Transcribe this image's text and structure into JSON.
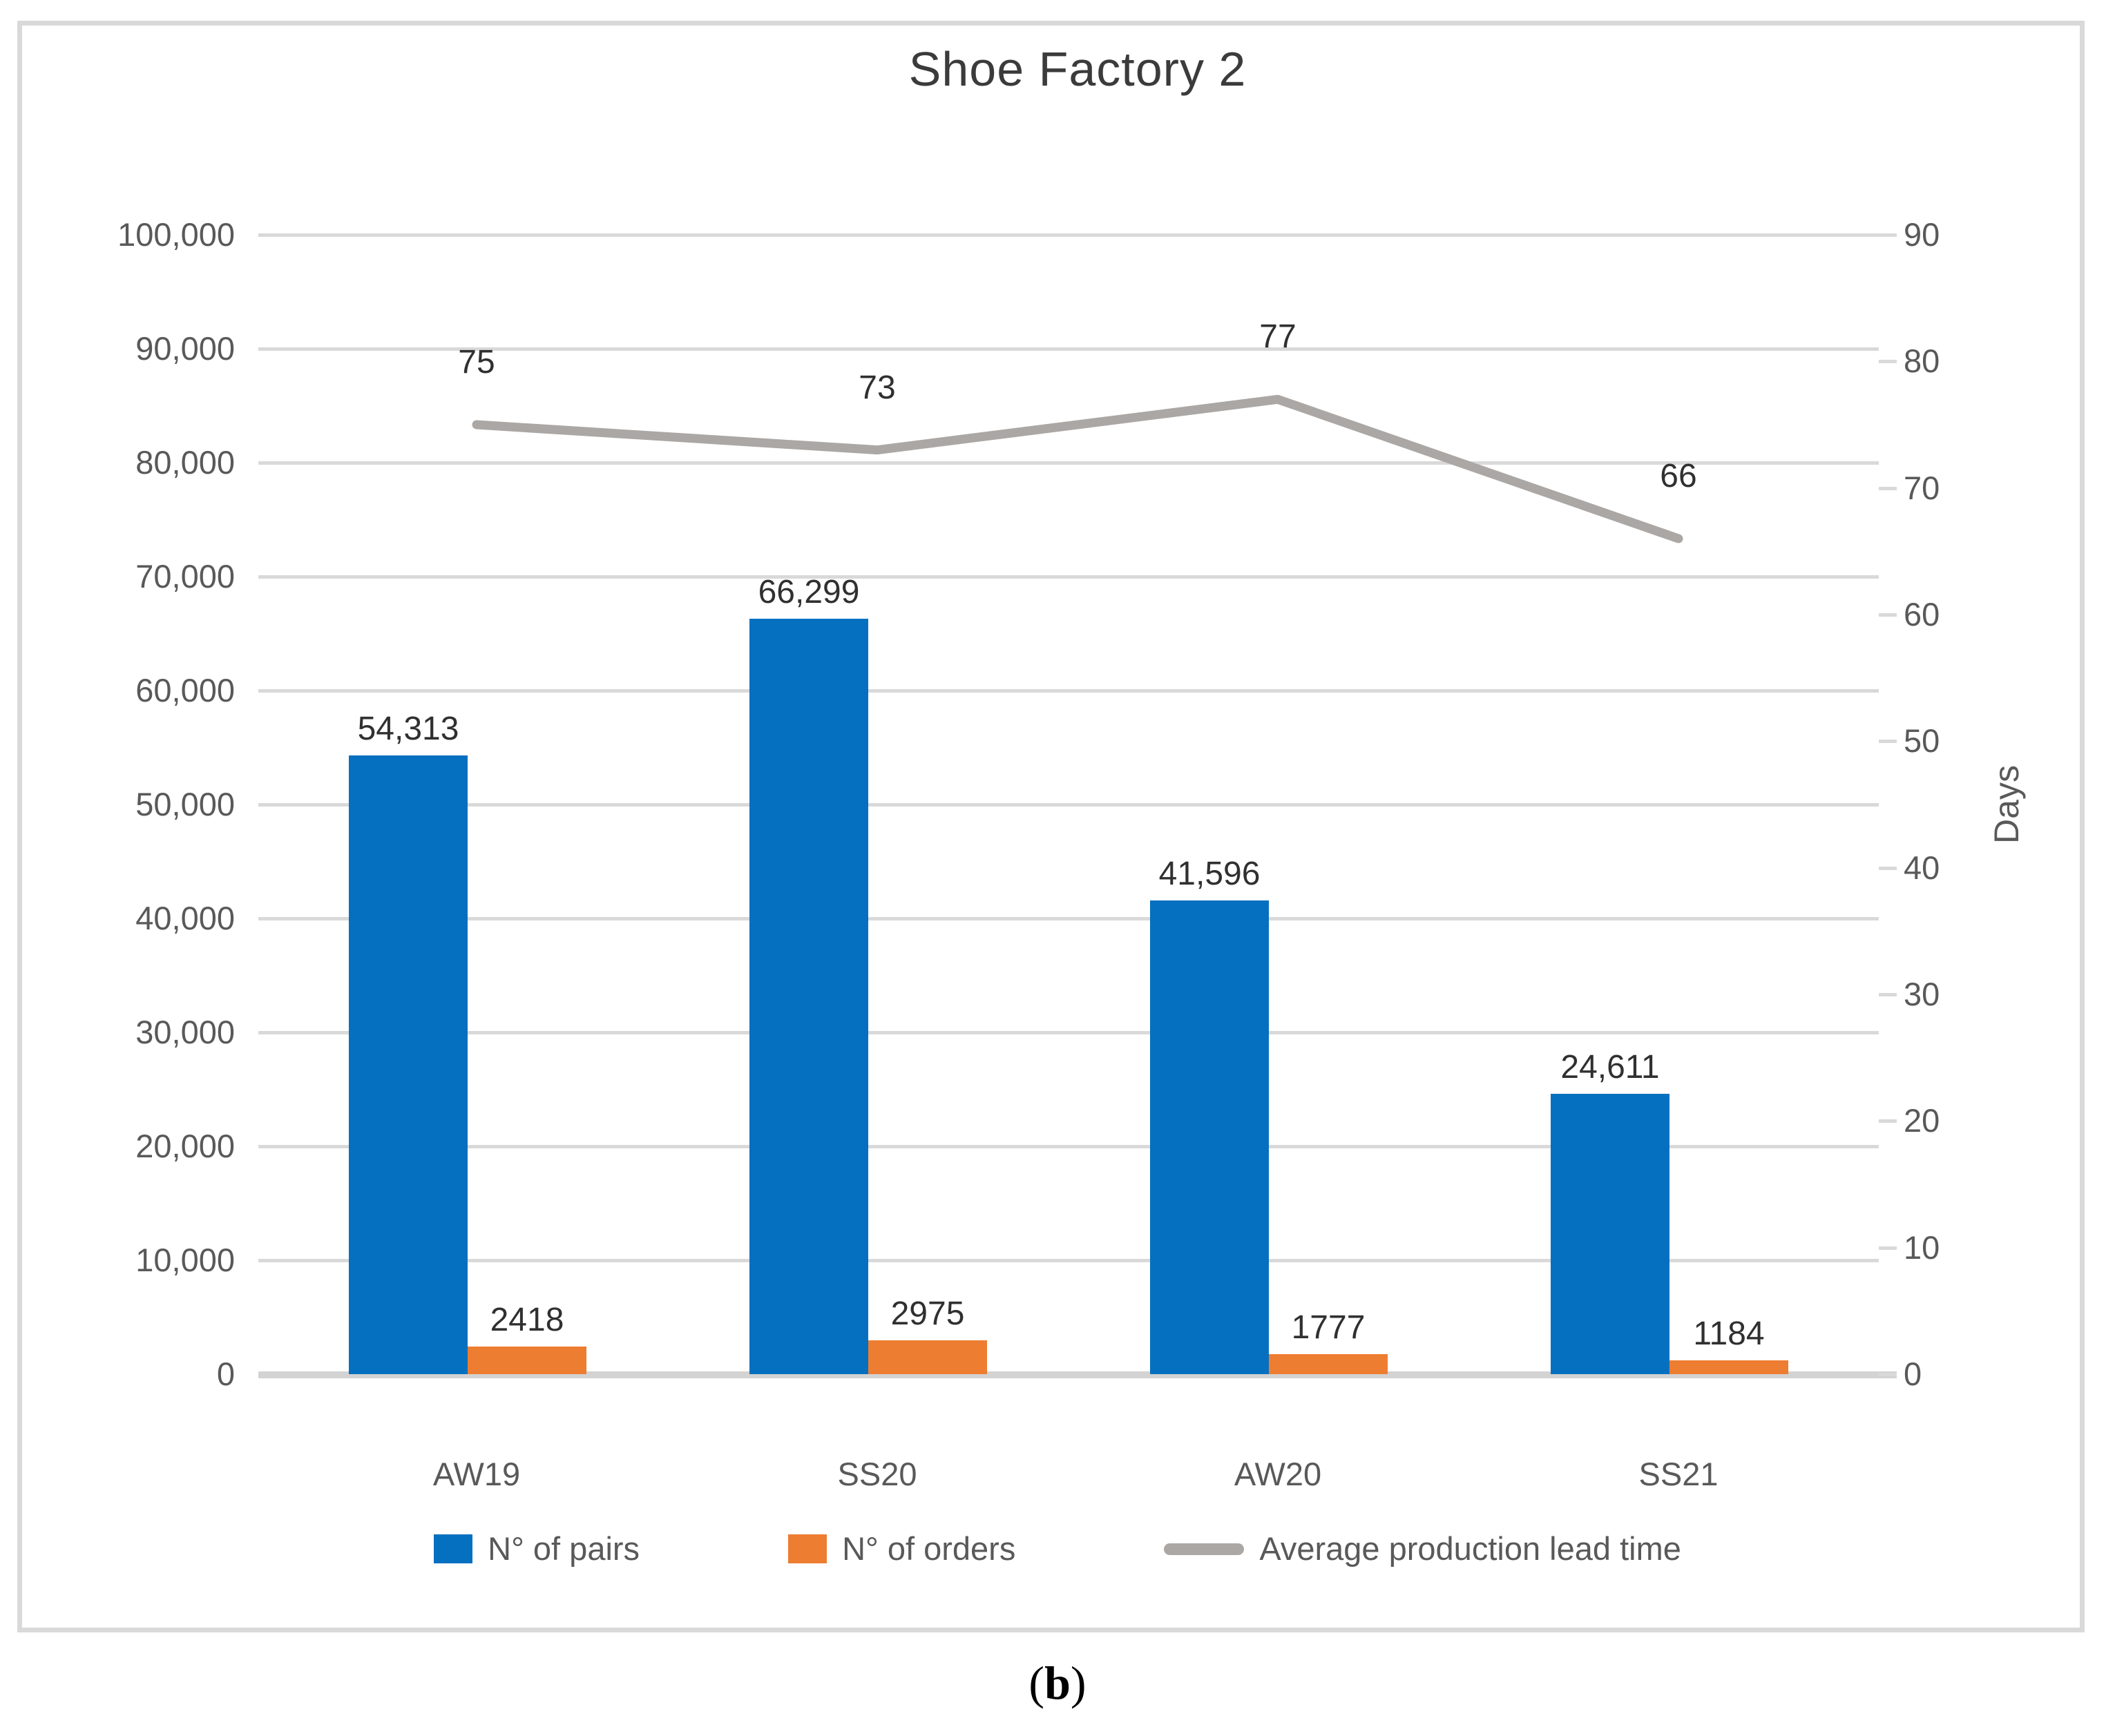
{
  "figure": {
    "caption_prefix": "(",
    "caption_letter": "b",
    "caption_suffix": ")"
  },
  "chart_data": {
    "type": "combo-bar-line",
    "title": "Shoe Factory 2",
    "categories": [
      "AW19",
      "SS20",
      "AW20",
      "SS21"
    ],
    "series": [
      {
        "name": "N° of pairs",
        "type": "bar",
        "axis": "left",
        "color": "#0670c0",
        "values": [
          54313,
          66299,
          41596,
          24611
        ],
        "labels": [
          "54,313",
          "66,299",
          "41,596",
          "24,611"
        ]
      },
      {
        "name": "N° of orders",
        "type": "bar",
        "axis": "left",
        "color": "#ed7d31",
        "values": [
          2418,
          2975,
          1777,
          1184
        ],
        "labels": [
          "2418",
          "2975",
          "1777",
          "1184"
        ]
      },
      {
        "name": "Average production lead time",
        "type": "line",
        "axis": "right",
        "color": "#aba7a4",
        "values": [
          75,
          73,
          77,
          66
        ],
        "labels": [
          "75",
          "73",
          "77",
          "66"
        ]
      }
    ],
    "left_axis": {
      "min": 0,
      "max": 100000,
      "step": 10000,
      "tick_labels_top_to_bottom": [
        "100,000",
        "90,000",
        "80,000",
        "70,000",
        "60,000",
        "50,000",
        "40,000",
        "30,000",
        "20,000",
        "10,000",
        "0"
      ]
    },
    "right_axis": {
      "min": 0,
      "max": 90,
      "step": 10,
      "title": "Days",
      "tick_labels_top_to_bottom": [
        "90",
        "80",
        "70",
        "60",
        "50",
        "40",
        "30",
        "20",
        "10",
        "0"
      ]
    },
    "legend_position": "bottom",
    "grid": true,
    "colors": {
      "gridline": "#d9d9d9",
      "axis_line": "#d3d3d3",
      "axis_text": "#595959",
      "data_label_text": "#303030",
      "title_text": "#3b3b3b"
    }
  }
}
